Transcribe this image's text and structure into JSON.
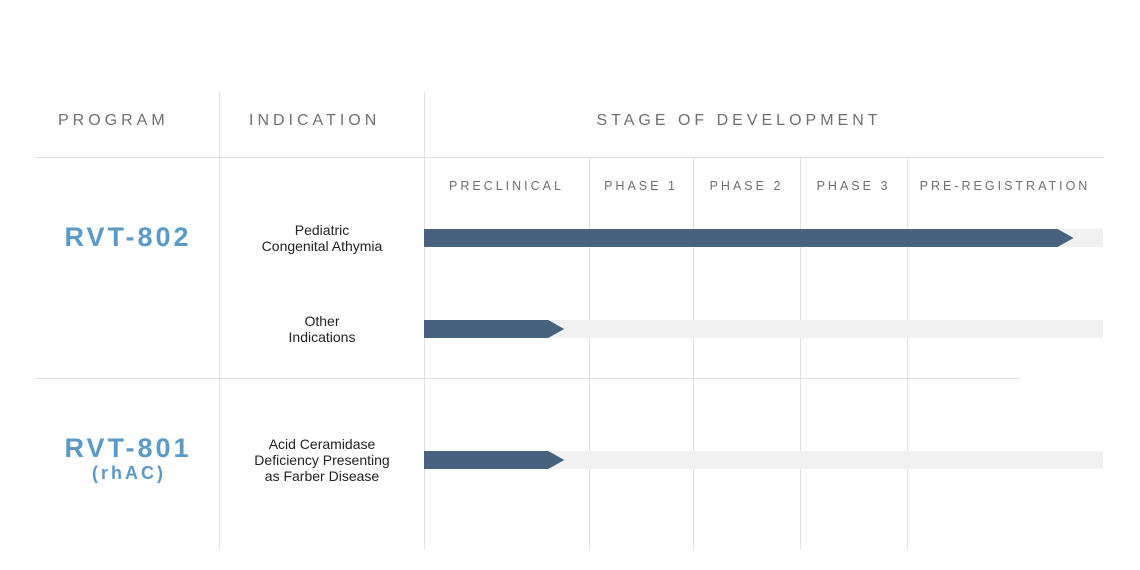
{
  "headers": {
    "program": "PROGRAM",
    "indication": "INDICATION",
    "stage": "STAGE OF DEVELOPMENT"
  },
  "colors": {
    "accent": "#5b9ac8",
    "bar": "#46627e",
    "track": "#f1f1f1",
    "line": "#e0e0e0"
  },
  "chart_data": {
    "type": "bar",
    "stages": [
      "PRECLINICAL",
      "PHASE 1",
      "PHASE 2",
      "PHASE 3",
      "PRE-REGISTRATION"
    ],
    "programs": [
      {
        "name": "RVT-802",
        "subtitle": ""
      },
      {
        "name": "RVT-801",
        "subtitle": "(rhAC)"
      }
    ],
    "rows": [
      {
        "program": "RVT-802",
        "indication": [
          "Pediatric",
          "Congenital Athymia"
        ],
        "progress_stages": 4.85
      },
      {
        "program": "RVT-802",
        "indication": [
          "Other",
          "Indications"
        ],
        "progress_stages": 0.85
      },
      {
        "program": "RVT-801",
        "indication": [
          "Acid Ceramidase",
          "Deficiency Presenting",
          "as Farber Disease"
        ],
        "progress_stages": 0.85
      }
    ]
  }
}
